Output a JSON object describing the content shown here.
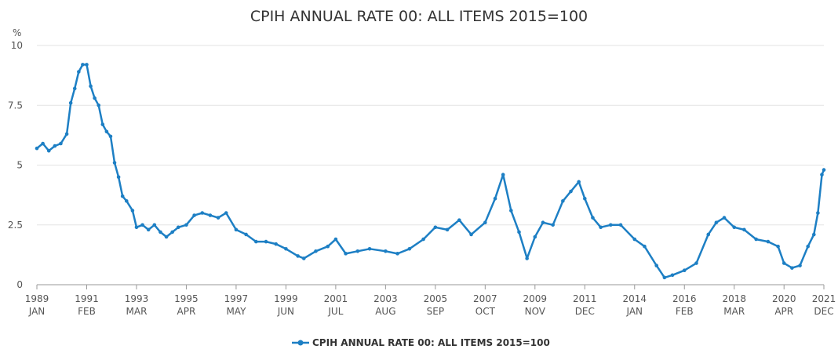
{
  "chart_data": {
    "type": "line",
    "title": "CPIH ANNUAL RATE 00: ALL ITEMS 2015=100",
    "ylabel": "%",
    "xlabel": "",
    "ylim": [
      0,
      10
    ],
    "xlim": [
      "1989-01",
      "2021-12"
    ],
    "y_ticks": [
      "0",
      "2.5",
      "5",
      "7.5",
      "10"
    ],
    "x_ticks": [
      {
        "year": "1989",
        "month": "JAN",
        "date": "1989-01"
      },
      {
        "year": "1991",
        "month": "FEB",
        "date": "1991-02"
      },
      {
        "year": "1993",
        "month": "MAR",
        "date": "1993-03"
      },
      {
        "year": "1995",
        "month": "APR",
        "date": "1995-04"
      },
      {
        "year": "1997",
        "month": "MAY",
        "date": "1997-05"
      },
      {
        "year": "1999",
        "month": "JUN",
        "date": "1999-06"
      },
      {
        "year": "2001",
        "month": "JUL",
        "date": "2001-07"
      },
      {
        "year": "2003",
        "month": "AUG",
        "date": "2003-08"
      },
      {
        "year": "2005",
        "month": "SEP",
        "date": "2005-09"
      },
      {
        "year": "2007",
        "month": "OCT",
        "date": "2007-10"
      },
      {
        "year": "2009",
        "month": "NOV",
        "date": "2009-11"
      },
      {
        "year": "2011",
        "month": "DEC",
        "date": "2011-12"
      },
      {
        "year": "2014",
        "month": "JAN",
        "date": "2014-01"
      },
      {
        "year": "2016",
        "month": "FEB",
        "date": "2016-02"
      },
      {
        "year": "2018",
        "month": "MAR",
        "date": "2018-03"
      },
      {
        "year": "2020",
        "month": "APR",
        "date": "2020-04"
      },
      {
        "year": "2021",
        "month": "DEC",
        "date": "2021-12"
      }
    ],
    "grid": "horizontal",
    "legend": "bottom-center",
    "series": [
      {
        "name": "CPIH ANNUAL RATE 00: ALL ITEMS 2015=100",
        "color": "#1d7fc4",
        "points": [
          [
            "1989-01",
            5.7
          ],
          [
            "1989-04",
            5.9
          ],
          [
            "1989-07",
            5.6
          ],
          [
            "1989-10",
            5.8
          ],
          [
            "1990-01",
            5.9
          ],
          [
            "1990-04",
            6.3
          ],
          [
            "1990-06",
            7.6
          ],
          [
            "1990-08",
            8.2
          ],
          [
            "1990-10",
            8.9
          ],
          [
            "1990-12",
            9.2
          ],
          [
            "1991-02",
            9.2
          ],
          [
            "1991-04",
            8.3
          ],
          [
            "1991-06",
            7.8
          ],
          [
            "1991-08",
            7.5
          ],
          [
            "1991-10",
            6.7
          ],
          [
            "1991-12",
            6.4
          ],
          [
            "1992-02",
            6.2
          ],
          [
            "1992-04",
            5.1
          ],
          [
            "1992-06",
            4.5
          ],
          [
            "1992-08",
            3.7
          ],
          [
            "1992-10",
            3.5
          ],
          [
            "1993-01",
            3.1
          ],
          [
            "1993-03",
            2.4
          ],
          [
            "1993-06",
            2.5
          ],
          [
            "1993-09",
            2.3
          ],
          [
            "1993-12",
            2.5
          ],
          [
            "1994-03",
            2.2
          ],
          [
            "1994-06",
            2.0
          ],
          [
            "1994-09",
            2.2
          ],
          [
            "1994-12",
            2.4
          ],
          [
            "1995-04",
            2.5
          ],
          [
            "1995-08",
            2.9
          ],
          [
            "1995-12",
            3.0
          ],
          [
            "1996-04",
            2.9
          ],
          [
            "1996-08",
            2.8
          ],
          [
            "1996-12",
            3.0
          ],
          [
            "1997-05",
            2.3
          ],
          [
            "1997-10",
            2.1
          ],
          [
            "1998-03",
            1.8
          ],
          [
            "1998-08",
            1.8
          ],
          [
            "1999-01",
            1.7
          ],
          [
            "1999-06",
            1.5
          ],
          [
            "1999-12",
            1.2
          ],
          [
            "2000-03",
            1.1
          ],
          [
            "2000-09",
            1.4
          ],
          [
            "2001-03",
            1.6
          ],
          [
            "2001-07",
            1.9
          ],
          [
            "2001-12",
            1.3
          ],
          [
            "2002-06",
            1.4
          ],
          [
            "2002-12",
            1.5
          ],
          [
            "2003-08",
            1.4
          ],
          [
            "2004-02",
            1.3
          ],
          [
            "2004-08",
            1.5
          ],
          [
            "2005-03",
            1.9
          ],
          [
            "2005-09",
            2.4
          ],
          [
            "2006-03",
            2.3
          ],
          [
            "2006-09",
            2.7
          ],
          [
            "2007-03",
            2.1
          ],
          [
            "2007-10",
            2.6
          ],
          [
            "2008-03",
            3.6
          ],
          [
            "2008-07",
            4.6
          ],
          [
            "2008-11",
            3.1
          ],
          [
            "2009-03",
            2.2
          ],
          [
            "2009-07",
            1.1
          ],
          [
            "2009-11",
            2.0
          ],
          [
            "2010-03",
            2.6
          ],
          [
            "2010-08",
            2.5
          ],
          [
            "2011-01",
            3.5
          ],
          [
            "2011-05",
            3.9
          ],
          [
            "2011-09",
            4.3
          ],
          [
            "2011-12",
            3.6
          ],
          [
            "2012-04",
            2.8
          ],
          [
            "2012-08",
            2.4
          ],
          [
            "2013-01",
            2.5
          ],
          [
            "2013-06",
            2.5
          ],
          [
            "2014-01",
            1.9
          ],
          [
            "2014-06",
            1.6
          ],
          [
            "2014-12",
            0.8
          ],
          [
            "2015-04",
            0.3
          ],
          [
            "2015-08",
            0.4
          ],
          [
            "2016-02",
            0.6
          ],
          [
            "2016-08",
            0.9
          ],
          [
            "2017-02",
            2.1
          ],
          [
            "2017-06",
            2.6
          ],
          [
            "2017-10",
            2.8
          ],
          [
            "2018-03",
            2.4
          ],
          [
            "2018-08",
            2.3
          ],
          [
            "2019-02",
            1.9
          ],
          [
            "2019-08",
            1.8
          ],
          [
            "2020-01",
            1.6
          ],
          [
            "2020-04",
            0.9
          ],
          [
            "2020-08",
            0.7
          ],
          [
            "2020-12",
            0.8
          ],
          [
            "2021-04",
            1.6
          ],
          [
            "2021-07",
            2.1
          ],
          [
            "2021-09",
            3.0
          ],
          [
            "2021-11",
            4.6
          ],
          [
            "2021-12",
            4.8
          ]
        ]
      }
    ]
  }
}
